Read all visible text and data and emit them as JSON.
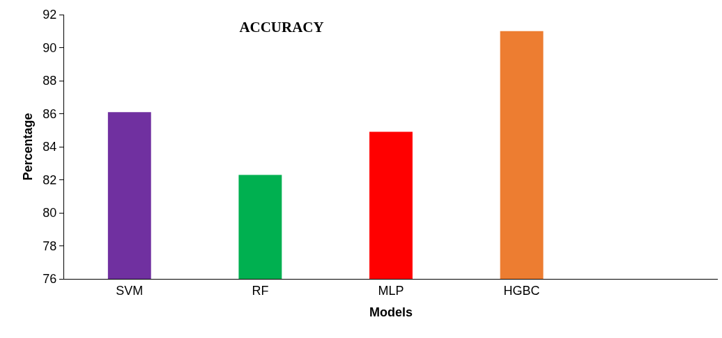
{
  "chart_data": {
    "type": "bar",
    "title": "ACCURACY",
    "xlabel": "Models",
    "ylabel": "Percentage",
    "categories": [
      "SVM",
      "RF",
      "MLP",
      "HGBC",
      null
    ],
    "values": [
      86.1,
      82.3,
      84.9,
      91.0,
      null
    ],
    "colors": [
      "#7030a0",
      "#00b050",
      "#ff0000",
      "#ed7d31",
      "#000000"
    ],
    "ylim": [
      76,
      92
    ],
    "yticks": [
      76,
      78,
      80,
      82,
      84,
      86,
      88,
      90,
      92
    ],
    "grid": false,
    "legend": false
  }
}
